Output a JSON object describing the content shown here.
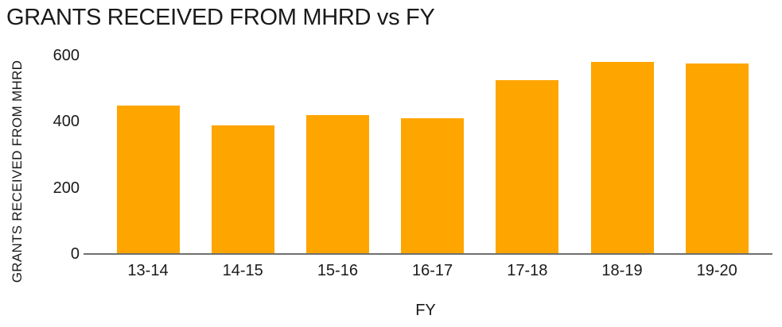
{
  "chart_data": {
    "type": "bar",
    "title": "GRANTS RECEIVED FROM MHRD vs FY",
    "xlabel": "FY",
    "ylabel": "GRANTS RECEIVED FROM MHRD",
    "categories": [
      "13-14",
      "14-15",
      "15-16",
      "16-17",
      "17-18",
      "18-19",
      "19-20"
    ],
    "values": [
      450,
      390,
      420,
      410,
      525,
      580,
      575
    ],
    "yticks": [
      0,
      200,
      400,
      600
    ],
    "ylim": [
      0,
      600
    ],
    "grid": false,
    "legend": false,
    "bar_color": "#FFA500",
    "axis_color": "#6f6f6f",
    "text_color": "#1a1a1a"
  }
}
